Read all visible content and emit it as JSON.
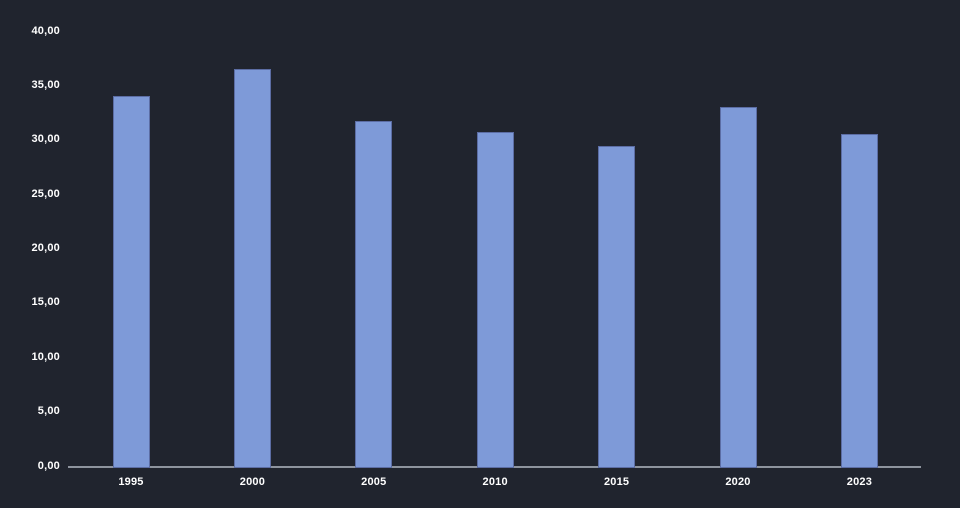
{
  "app": {
    "background_color": "#20242e"
  },
  "chart_data": {
    "type": "bar",
    "title": "",
    "xlabel": "",
    "ylabel": "",
    "categories": [
      "1995",
      "2000",
      "2005",
      "2010",
      "2015",
      "2020",
      "2023"
    ],
    "values": [
      34.0,
      36.5,
      31.7,
      30.7,
      29.4,
      33.0,
      30.5
    ],
    "ylim": [
      0,
      40
    ],
    "y_ticks": [
      {
        "value": 0,
        "label": "0,00"
      },
      {
        "value": 5,
        "label": "5,00"
      },
      {
        "value": 10,
        "label": "10,00"
      },
      {
        "value": 15,
        "label": "15,00"
      },
      {
        "value": 20,
        "label": "20,00"
      },
      {
        "value": 25,
        "label": "25,00"
      },
      {
        "value": 30,
        "label": "30,00"
      },
      {
        "value": 35,
        "label": "35,00"
      },
      {
        "value": 40,
        "label": "40,00"
      }
    ],
    "grid": false,
    "legend": "none",
    "bar_fill_color": "#7e9ad8",
    "bar_border_color": "#5c6da4",
    "axis_line_color": "#8e949e",
    "tick_text_color": "#ffffff"
  }
}
